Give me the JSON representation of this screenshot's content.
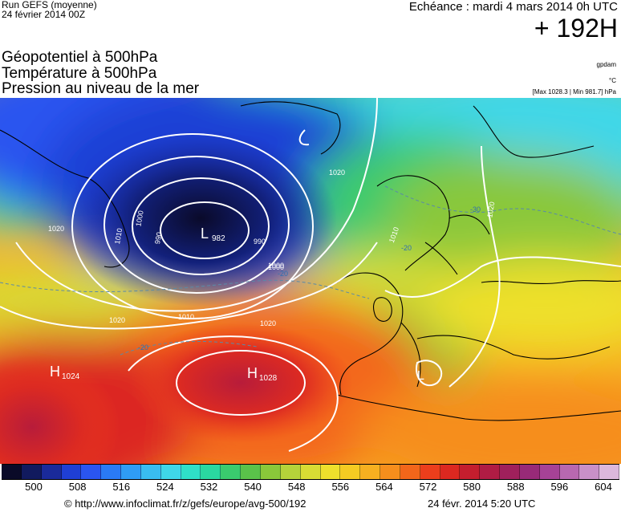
{
  "header": {
    "run_title": "Run GEFS (moyenne)",
    "run_date": "24 février 2014 00Z",
    "echeance": "Echéance : mardi 4 mars 2014 0h UTC",
    "lead_time": "+ 192H"
  },
  "parameters": [
    "Géopotentiel à 500hPa",
    "Température à 500hPa",
    "Pression au niveau de la mer"
  ],
  "units": {
    "geopotential": "gpdam",
    "temperature": "°C",
    "pressure_range": "[Max 1028.3 | Min 981.7] hPa"
  },
  "map": {
    "pressure_centers": [
      {
        "letter": "L",
        "value": "982"
      },
      {
        "letter": "H",
        "value": "1028"
      },
      {
        "letter": "H",
        "value": "1024"
      },
      {
        "letter": "L",
        "value": ""
      }
    ],
    "isobar_labels": [
      "1020",
      "1010",
      "1000",
      "990",
      "990",
      "1000",
      "1010",
      "1020",
      "1020",
      "1020",
      "1010",
      "1000",
      "1020"
    ],
    "temperature_labels": [
      "-20",
      "-20",
      "-30",
      "-20"
    ]
  },
  "colorbar": {
    "ticks": [
      "500",
      "508",
      "516",
      "524",
      "532",
      "540",
      "548",
      "556",
      "564",
      "572",
      "580",
      "588",
      "596",
      "604"
    ],
    "colors": [
      "#0a0a28",
      "#111a5e",
      "#1a2a9a",
      "#1f3fd4",
      "#2a55f0",
      "#2a7af5",
      "#2f9cf5",
      "#39bdf0",
      "#3fd7e8",
      "#2fe0c8",
      "#2ad8a0",
      "#3acb6e",
      "#5ac24a",
      "#8ac83a",
      "#b5d33a",
      "#d8dc34",
      "#eee02c",
      "#f5cb22",
      "#f7b020",
      "#f68e1c",
      "#f3661a",
      "#ec3e1c",
      "#dc2820",
      "#c41e2e",
      "#b01c44",
      "#a0205c",
      "#982a78",
      "#a64296",
      "#b868b0",
      "#c990c8",
      "#dcb8dc"
    ]
  },
  "footer": {
    "credit": "© http://www.infoclimat.fr/z/gefs/europe/avg-500/192",
    "generated": "24 févr. 2014  5:20 UTC"
  }
}
